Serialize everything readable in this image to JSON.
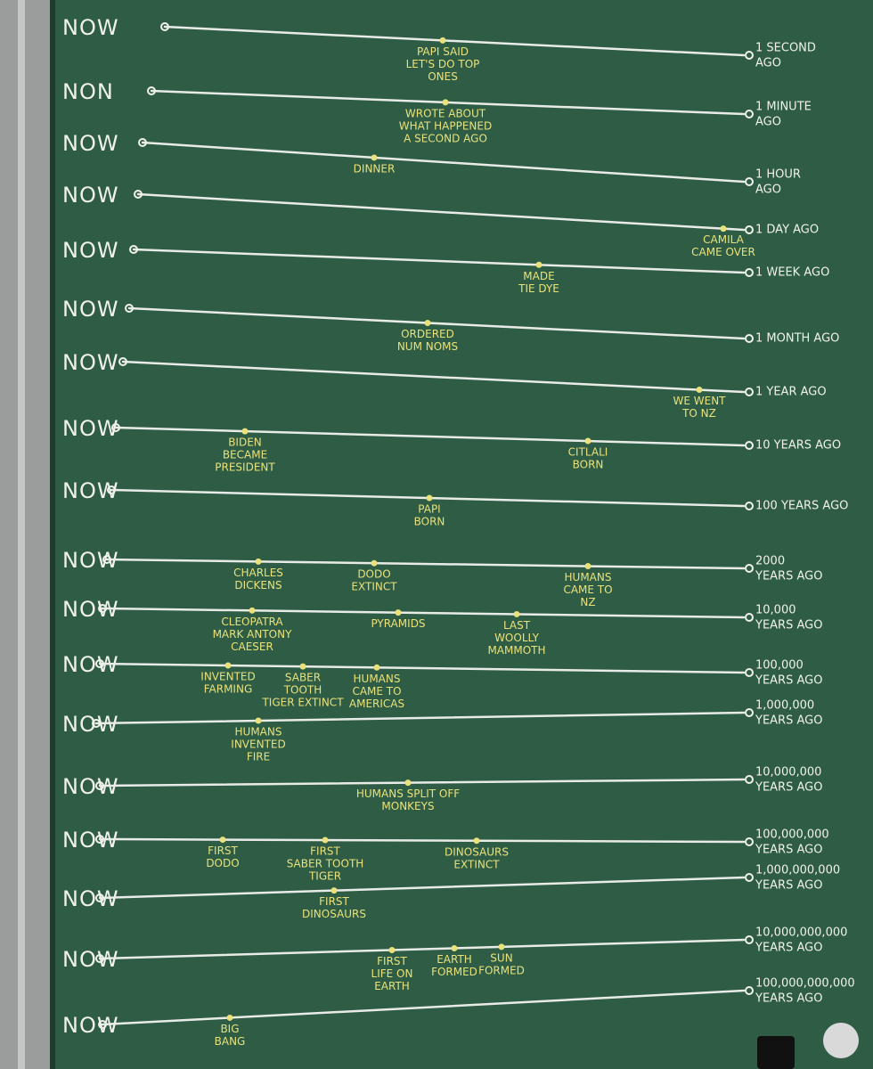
{
  "rows": [
    {
      "now": "NOW",
      "ago": [
        "1 SECOND",
        "AGO"
      ],
      "events": [
        [
          "PAPI SAID",
          "LET'S DO TOP",
          "ONES"
        ]
      ]
    },
    {
      "now": "NON",
      "ago": [
        "1 MINUTE",
        "AGO"
      ],
      "events": [
        [
          "WROTE ABOUT",
          "WHAT HAPPENED",
          "A SECOND AGO"
        ]
      ]
    },
    {
      "now": "NOW",
      "ago": [
        "1 HOUR",
        "AGO"
      ],
      "events": [
        [
          "DINNER"
        ]
      ]
    },
    {
      "now": "NOW",
      "ago": [
        "1 DAY AGO"
      ],
      "events": [
        [
          "CAMILA",
          "CAME OVER"
        ]
      ]
    },
    {
      "now": "NOW",
      "ago": [
        "1 WEEK AGO"
      ],
      "events": [
        [
          "MADE",
          "TIE DYE"
        ]
      ]
    },
    {
      "now": "NOW",
      "ago": [
        "1 MONTH AGO"
      ],
      "events": [
        [
          "ORDERED",
          "NUM NOMS"
        ]
      ]
    },
    {
      "now": "NOW",
      "ago": [
        "1 YEAR AGO"
      ],
      "events": [
        [
          "WE WENT",
          "TO NZ"
        ]
      ]
    },
    {
      "now": "NOW",
      "ago": [
        "10 YEARS AGO"
      ],
      "events": [
        [
          "BIDEN",
          "BECAME",
          "PRESIDENT"
        ],
        [
          "CITLALI",
          "BORN"
        ]
      ]
    },
    {
      "now": "NOW",
      "ago": [
        "100 YEARS AGO"
      ],
      "events": [
        [
          "PAPI",
          "BORN"
        ]
      ]
    },
    {
      "now": "NOW",
      "ago": [
        "2000",
        "YEARS AGO"
      ],
      "events": [
        [
          "CHARLES",
          "DICKENS"
        ],
        [
          "DODO",
          "EXTINCT"
        ],
        [
          "HUMANS",
          "CAME TO",
          "NZ"
        ]
      ]
    },
    {
      "now": "NOW",
      "ago": [
        "10,000",
        "YEARS AGO"
      ],
      "events": [
        [
          "CLEOPATRA",
          "MARK ANTONY",
          "CAESER"
        ],
        [
          "PYRAMIDS"
        ],
        [
          "LAST",
          "WOOLLY",
          "MAMMOTH"
        ]
      ]
    },
    {
      "now": "NOW",
      "ago": [
        "100,000",
        "YEARS AGO"
      ],
      "events": [
        [
          "INVENTED",
          "FARMING"
        ],
        [
          "SABER",
          "TOOTH",
          "TIGER EXTINCT"
        ],
        [
          "HUMANS",
          "CAME TO",
          "AMERICAS"
        ]
      ]
    },
    {
      "now": "NOW",
      "ago": [
        "1,000,000",
        "YEARS AGO"
      ],
      "events": [
        [
          "HUMANS",
          "INVENTED",
          "FIRE"
        ]
      ]
    },
    {
      "now": "NOW",
      "ago": [
        "10,000,000",
        "YEARS AGO"
      ],
      "events": [
        [
          "HUMANS SPLIT OFF",
          "MONKEYS"
        ]
      ]
    },
    {
      "now": "NOW",
      "ago": [
        "100,000,000",
        "YEARS AGO"
      ],
      "events": [
        [
          "FIRST",
          "DODO"
        ],
        [
          "FIRST",
          "SABER TOOTH",
          "TIGER"
        ],
        [
          "DINOSAURS",
          "EXTINCT"
        ]
      ]
    },
    {
      "now": "NOW",
      "ago": [
        "1,000,000,000",
        "YEARS AGO"
      ],
      "events": [
        [
          "FIRST",
          "DINOSAURS"
        ]
      ]
    },
    {
      "now": "NOW",
      "ago": [
        "10,000,000,000",
        "YEARS AGO"
      ],
      "events": [
        [
          "FIRST",
          "LIFE ON",
          "EARTH"
        ],
        [
          "EARTH",
          "FORMED"
        ],
        [
          "SUN",
          "FORMED"
        ]
      ]
    },
    {
      "now": "NOW",
      "ago": [
        "100,000,000,000",
        "YEARS AGO"
      ],
      "events": [
        [
          "BIG",
          "BANG"
        ]
      ]
    }
  ]
}
